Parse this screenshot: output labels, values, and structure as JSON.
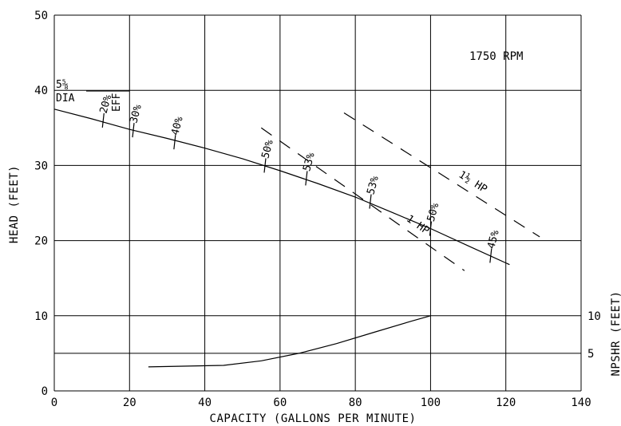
{
  "chart_data": {
    "type": "line",
    "title": "",
    "xlabel": "CAPACITY (GALLONS PER MINUTE)",
    "ylabel": "HEAD (FEET)",
    "y2label": "NPSHR (FEET)",
    "xlim": [
      0,
      140
    ],
    "ylim": [
      0,
      50
    ],
    "x_ticks": [
      "0",
      "20",
      "40",
      "60",
      "80",
      "100",
      "120",
      "140"
    ],
    "y_ticks": [
      "0",
      "10",
      "20",
      "30",
      "40",
      "50"
    ],
    "y2_ticks": [
      "5",
      "10"
    ],
    "speed_label": "1750 RPM",
    "impeller_label": [
      "5⅝",
      "DIA"
    ],
    "eff_label": "EFF",
    "grid": true,
    "series": [
      {
        "name": "5⅝ DIA",
        "x": [
          0,
          10,
          20,
          30,
          40,
          50,
          60,
          70,
          80,
          90,
          100,
          110,
          121
        ],
        "y": [
          37.5,
          36.2,
          34.8,
          33.6,
          32.3,
          30.9,
          29.3,
          27.6,
          25.8,
          23.7,
          21.6,
          19.3,
          16.8
        ]
      },
      {
        "name": "NPSHR",
        "x": [
          25,
          45,
          55,
          65,
          75,
          85,
          95,
          100
        ],
        "y": [
          3.2,
          3.4,
          4.0,
          5.0,
          6.3,
          7.8,
          9.3,
          10.0
        ]
      }
    ],
    "efficiency_marks": [
      {
        "label": "20%",
        "x": 13,
        "y": 36.0
      },
      {
        "label": "30%",
        "x": 21,
        "y": 34.7
      },
      {
        "label": "40%",
        "x": 32,
        "y": 33.1
      },
      {
        "label": "50%",
        "x": 56,
        "y": 30.0
      },
      {
        "label": "53%",
        "x": 67,
        "y": 28.3
      },
      {
        "label": "53%",
        "x": 84,
        "y": 25.2
      },
      {
        "label": "50%",
        "x": 100,
        "y": 21.6
      },
      {
        "label": "45%",
        "x": 116,
        "y": 18.0
      }
    ],
    "power_lines": [
      {
        "label": "1 HP",
        "x": [
          55,
          109
        ],
        "y": [
          35,
          16
        ]
      },
      {
        "label": "1½ HP",
        "x": [
          77,
          129
        ],
        "y": [
          37,
          20.5
        ]
      }
    ]
  }
}
